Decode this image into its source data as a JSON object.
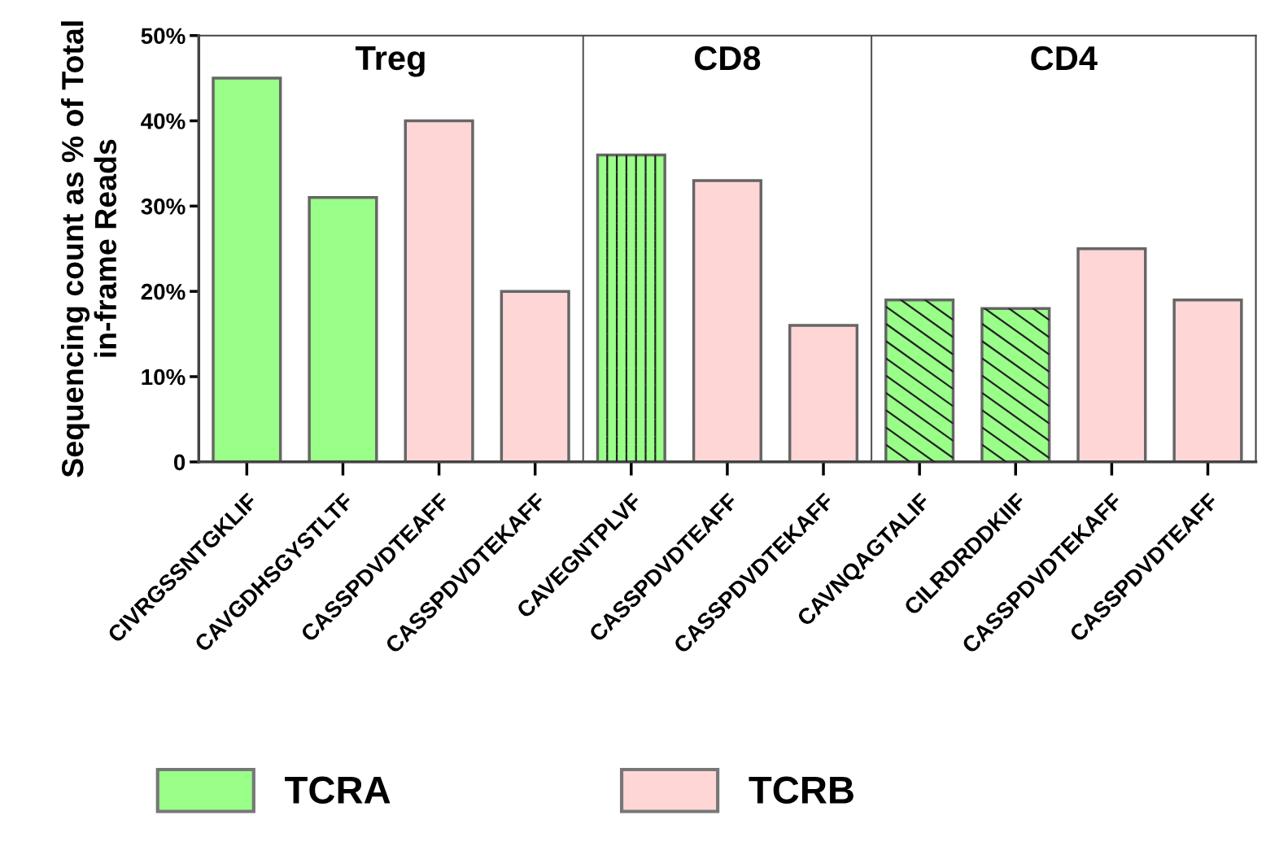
{
  "chart_data": {
    "type": "bar",
    "ylabel": "Sequencing count as % of Total\nin-frame Reads",
    "categories": [
      "CIVRGSSNTGKLIF",
      "CAVGDHSGYSTLTF",
      "CASSPDVDTEAFF",
      "CASSPDVDTEKAFF",
      "CAVEGNTPLVF",
      "CASSPDVDTEAFF",
      "CASSPDVDTEKAFF",
      "CAVNQAGTALIF",
      "CILRDRDDKIIF",
      "CASSPDVDTEKAFF",
      "CASSPDVDTEAFF"
    ],
    "series": [
      {
        "name": "TCRA",
        "color": "#99ff88",
        "values": [
          45,
          31,
          null,
          null,
          36,
          null,
          null,
          19,
          18,
          null,
          null
        ]
      },
      {
        "name": "TCRB",
        "color": "#ffd6d6",
        "values": [
          null,
          null,
          40,
          20,
          null,
          33,
          16,
          null,
          null,
          25,
          19
        ]
      }
    ],
    "ylim": [
      0,
      50
    ],
    "yticks": [
      0,
      {
        "value": 10,
        "label": "10%"
      },
      {
        "value": 20,
        "label": "20%"
      },
      {
        "value": 30,
        "label": "30%"
      },
      {
        "value": 40,
        "label": "40%"
      },
      {
        "value": 50,
        "label": "50%"
      }
    ],
    "annotations": [
      "Treg",
      "CD8",
      "CD4"
    ],
    "grid": false,
    "legend": "bottom"
  }
}
